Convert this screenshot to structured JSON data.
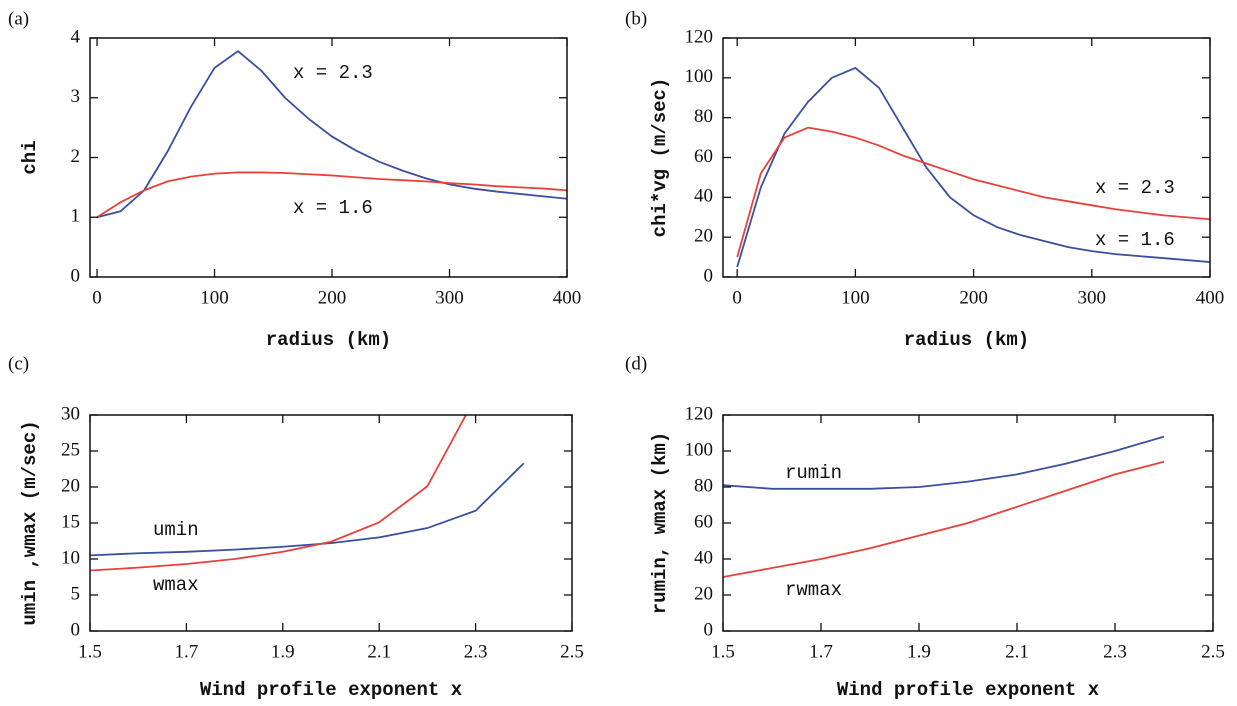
{
  "chart_data": [
    {
      "type": "line",
      "panel_label": "(a)",
      "x_label": "radius (km)",
      "y_label": "chi",
      "x": [
        0,
        20,
        40,
        60,
        80,
        100,
        120,
        140,
        160,
        180,
        200,
        220,
        240,
        260,
        280,
        300,
        320,
        340,
        360,
        380,
        400
      ],
      "series": [
        {
          "name": "x = 2.3",
          "color": "#3a4fa0",
          "values": [
            1.0,
            1.1,
            1.45,
            2.1,
            2.85,
            3.5,
            3.78,
            3.45,
            3.0,
            2.65,
            2.35,
            2.12,
            1.93,
            1.78,
            1.65,
            1.55,
            1.48,
            1.43,
            1.39,
            1.35,
            1.31
          ]
        },
        {
          "name": "x = 1.6",
          "color": "#e8413a",
          "values": [
            1.0,
            1.25,
            1.45,
            1.6,
            1.68,
            1.73,
            1.75,
            1.75,
            1.74,
            1.72,
            1.7,
            1.67,
            1.64,
            1.62,
            1.6,
            1.57,
            1.55,
            1.52,
            1.5,
            1.48,
            1.45
          ]
        }
      ],
      "xlim": [
        -6,
        400
      ],
      "xticks": [
        0,
        100,
        200,
        300,
        400
      ],
      "ylim": [
        0,
        4
      ],
      "yticks": [
        0,
        1,
        2,
        3,
        4
      ]
    },
    {
      "type": "line",
      "panel_label": "(b)",
      "x_label": "radius (km)",
      "y_label": "chi*vg (m/sec)",
      "x": [
        0,
        20,
        40,
        60,
        80,
        100,
        120,
        140,
        160,
        180,
        200,
        220,
        240,
        260,
        280,
        300,
        320,
        340,
        360,
        380,
        400
      ],
      "series": [
        {
          "name": "x = 2.3",
          "color": "#3a4fa0",
          "values": [
            5,
            45,
            72,
            88,
            100,
            105,
            95,
            75,
            55,
            40,
            31,
            25,
            21,
            18,
            15,
            13,
            11.5,
            10.5,
            9.5,
            8.5,
            7.5
          ]
        },
        {
          "name": "x = 1.6",
          "color": "#e8413a",
          "values": [
            10,
            52,
            70,
            75,
            73,
            70,
            66,
            61,
            57,
            53,
            49,
            46,
            43,
            40,
            38,
            36,
            34,
            32.5,
            31,
            30,
            29
          ]
        }
      ],
      "xlim": [
        -12,
        400
      ],
      "xticks": [
        0,
        100,
        200,
        300,
        400
      ],
      "ylim": [
        0,
        120
      ],
      "yticks": [
        0,
        20,
        40,
        60,
        80,
        100,
        120
      ]
    },
    {
      "type": "line",
      "panel_label": "(c)",
      "x_label": "Wind profile exponent x",
      "y_label": "umin ,wmax (m/sec)",
      "x": [
        1.5,
        1.6,
        1.7,
        1.8,
        1.9,
        2.0,
        2.1,
        2.2,
        2.3,
        2.4
      ],
      "series": [
        {
          "name": "umin",
          "color": "#3a4fa0",
          "values": [
            10.5,
            10.8,
            11.0,
            11.3,
            11.7,
            12.2,
            13.0,
            14.3,
            16.7,
            23.3
          ]
        },
        {
          "name": "wmax",
          "color": "#e8413a",
          "values": [
            8.4,
            8.8,
            9.3,
            10.0,
            11.0,
            12.4,
            15.1,
            20.1,
            32.5,
            null
          ]
        }
      ],
      "xlim": [
        1.5,
        2.5
      ],
      "xticks": [
        1.5,
        1.7,
        1.9,
        2.1,
        2.3,
        2.5
      ],
      "ylim": [
        0,
        30
      ],
      "yticks": [
        0,
        5,
        10,
        15,
        20,
        25,
        30
      ]
    },
    {
      "type": "line",
      "panel_label": "(d)",
      "x_label": "Wind profile exponent x",
      "y_label": "rumin, wmax (km)",
      "x": [
        1.5,
        1.6,
        1.7,
        1.8,
        1.9,
        2.0,
        2.1,
        2.2,
        2.3,
        2.4
      ],
      "series": [
        {
          "name": "rumin",
          "color": "#3a4fa0",
          "values": [
            81,
            79,
            79,
            79,
            80,
            83,
            87,
            93,
            100,
            108
          ]
        },
        {
          "name": "rwmax",
          "color": "#e8413a",
          "values": [
            30,
            35,
            40,
            46,
            53,
            60,
            69,
            78,
            87,
            94
          ]
        }
      ],
      "xlim": [
        1.5,
        2.5
      ],
      "xticks": [
        1.5,
        1.7,
        1.9,
        2.1,
        2.3,
        2.5
      ],
      "ylim": [
        0,
        120
      ],
      "yticks": [
        0,
        20,
        40,
        60,
        80,
        100,
        120
      ]
    }
  ]
}
